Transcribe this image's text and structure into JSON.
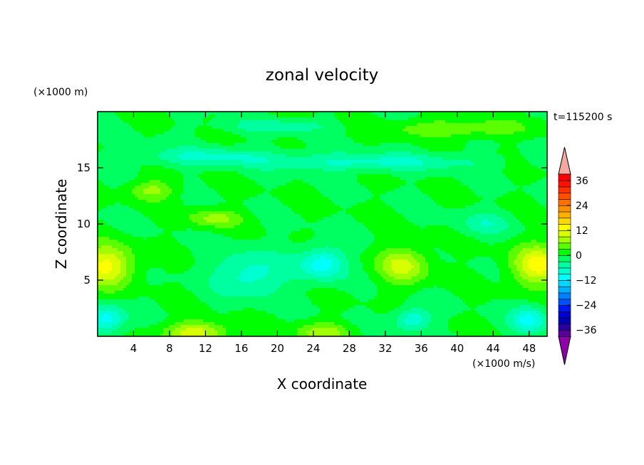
{
  "chart_data": {
    "type": "heatmap",
    "title": "zonal velocity",
    "xlabel": "X coordinate",
    "ylabel": "Z coordinate",
    "x_unit": "(×1000 m/s)",
    "y_unit": "(×1000 m)",
    "time_label": "t=115200 s",
    "xlim": [
      0,
      50
    ],
    "ylim": [
      0,
      20
    ],
    "x_ticks": [
      4,
      8,
      12,
      16,
      20,
      24,
      28,
      32,
      36,
      40,
      44,
      48
    ],
    "y_ticks": [
      5,
      10,
      15
    ],
    "colorbar": {
      "levels": [
        -42,
        -39,
        -36,
        -33,
        -30,
        -27,
        -24,
        -21,
        -18,
        -15,
        -12,
        -9,
        -6,
        -3,
        0,
        3,
        6,
        9,
        12,
        15,
        18,
        21,
        24,
        27,
        30,
        33,
        36,
        39,
        42
      ],
      "tick_labels": [
        36,
        24,
        12,
        0,
        -12,
        -24,
        -36
      ],
      "colors": [
        "#8c00a8",
        "#5a009a",
        "#2a00a0",
        "#0000b0",
        "#0000d0",
        "#0018ee",
        "#0050ff",
        "#0080ff",
        "#00b0ff",
        "#00d8ff",
        "#00ffff",
        "#00ffd0",
        "#00ffa0",
        "#00ff60",
        "#00ff00",
        "#5aff00",
        "#a0ff00",
        "#d8ff00",
        "#ffff00",
        "#ffd800",
        "#ffb000",
        "#ff9000",
        "#ff7000",
        "#ff5000",
        "#ff3000",
        "#ff1000",
        "#f80000",
        "#f4a8a0"
      ]
    },
    "field_features": [
      {
        "x": 1,
        "z": 6.3,
        "value": 13,
        "spread_x": 3.0,
        "spread_z": 1.8
      },
      {
        "x": 49,
        "z": 6.3,
        "value": 13,
        "spread_x": 3.0,
        "spread_z": 1.8
      },
      {
        "x": 34,
        "z": 6.3,
        "value": 10,
        "spread_x": 2.8,
        "spread_z": 1.6
      },
      {
        "x": 11,
        "z": 0.3,
        "value": 11,
        "spread_x": 3.5,
        "spread_z": 1.0
      },
      {
        "x": 25,
        "z": 0.3,
        "value": 8,
        "spread_x": 3.0,
        "spread_z": 0.9
      },
      {
        "x": 6,
        "z": 13,
        "value": 7,
        "spread_x": 2.5,
        "spread_z": 0.9
      },
      {
        "x": 13,
        "z": 10.5,
        "value": 7,
        "spread_x": 3.0,
        "spread_z": 0.8
      },
      {
        "x": 40,
        "z": 18.5,
        "value": 6,
        "spread_x": 8.0,
        "spread_z": 0.8
      },
      {
        "x": 25,
        "z": 6.5,
        "value": -11,
        "spread_x": 2.5,
        "spread_z": 1.5
      },
      {
        "x": 1,
        "z": 1.5,
        "value": -11,
        "spread_x": 2.0,
        "spread_z": 1.2
      },
      {
        "x": 48,
        "z": 1.5,
        "value": -10,
        "spread_x": 2.0,
        "spread_z": 1.2
      },
      {
        "x": 35,
        "z": 1.5,
        "value": -9,
        "spread_x": 2.0,
        "spread_z": 1.0
      },
      {
        "x": 17,
        "z": 5.5,
        "value": -8,
        "spread_x": 4.0,
        "spread_z": 2.0
      },
      {
        "x": 30,
        "z": 15.5,
        "value": -7,
        "spread_x": 12.0,
        "spread_z": 0.8
      },
      {
        "x": 12,
        "z": 16,
        "value": -6,
        "spread_x": 8.0,
        "spread_z": 0.8
      },
      {
        "x": 20,
        "z": 18.7,
        "value": -5,
        "spread_x": 6.0,
        "spread_z": 0.6
      },
      {
        "x": 43,
        "z": 10,
        "value": -5,
        "spread_x": 3.0,
        "spread_z": 1.0
      }
    ]
  }
}
